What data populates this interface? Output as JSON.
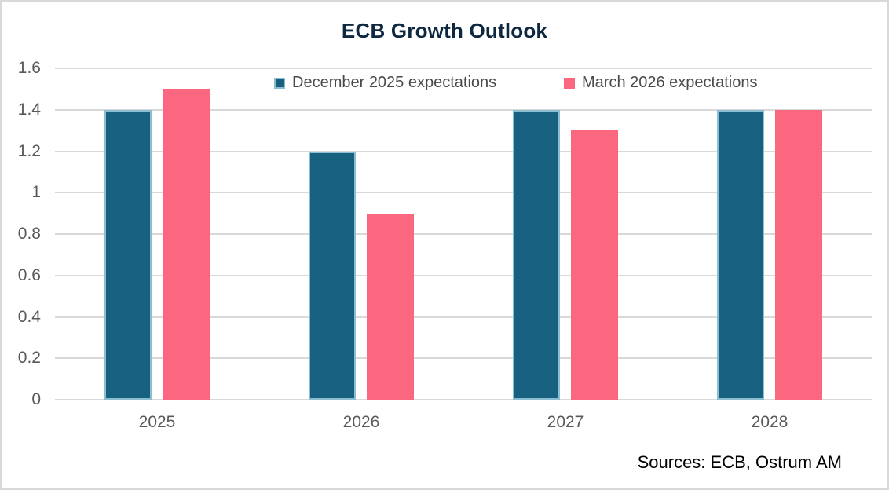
{
  "chart_data": {
    "type": "bar",
    "title": "ECB Growth Outlook",
    "categories": [
      "2025",
      "2026",
      "2027",
      "2028"
    ],
    "series": [
      {
        "name": "December 2025 expectations",
        "values": [
          1.4,
          1.2,
          1.4,
          1.4
        ],
        "color": "#17607F",
        "border_color": "#8CBED2"
      },
      {
        "name": "March 2026 expectations",
        "values": [
          1.5,
          0.9,
          1.3,
          1.4
        ],
        "color": "#FC6780",
        "border_color": ""
      }
    ],
    "ylim": [
      0,
      1.6
    ],
    "ytick_labels": [
      "0",
      "0.2",
      "0.4",
      "0.6",
      "0.8",
      "1",
      "1.2",
      "1.4",
      "1.6"
    ],
    "grid": true,
    "legend_position": "top-inside",
    "xlabel": "",
    "ylabel": ""
  },
  "footer": {
    "sources": "Sources: ECB, Ostrum AM"
  },
  "colors": {
    "title_text": "#0E2841",
    "axis_label_text": "#595959",
    "legend_text": "#4A4A4A",
    "gridline": "#D9D9D9",
    "frame_border": "#D9D9D9",
    "background": "#FFFFFF"
  }
}
